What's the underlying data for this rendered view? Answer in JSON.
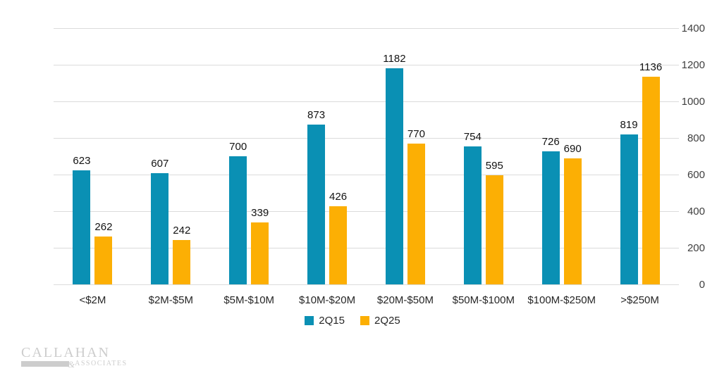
{
  "chart_data": {
    "type": "bar",
    "title": "",
    "xlabel": "",
    "ylabel": "",
    "categories": [
      "<$2M",
      "$2M-$5M",
      "$5M-$10M",
      "$10M-$20M",
      "$20M-$50M",
      "$50M-$100M",
      "$100M-$250M",
      ">$250M"
    ],
    "series": [
      {
        "name": "2Q15",
        "color": "#0A90B4",
        "values": [
          623,
          607,
          700,
          873,
          1182,
          754,
          726,
          819
        ]
      },
      {
        "name": "2Q25",
        "color": "#FCAF04",
        "values": [
          262,
          242,
          339,
          426,
          770,
          595,
          690,
          1136
        ]
      }
    ],
    "ylim": [
      0,
      1400
    ],
    "yticks": [
      0,
      200,
      400,
      600,
      800,
      1000,
      1200,
      1400
    ],
    "grid": true,
    "data_labels": true,
    "legend_position": "bottom"
  },
  "colors": {
    "background": "#FFFFFF",
    "gridline": "#DBDBDB",
    "value_label_text": "#131313",
    "axis_tick_text": "#3F3F3F",
    "category_text": "#262626",
    "logo_gray": "#CDCDCD"
  },
  "logo": {
    "line1": "CALLAHAN",
    "amp": "&",
    "line2": "ASSOCIATES"
  }
}
